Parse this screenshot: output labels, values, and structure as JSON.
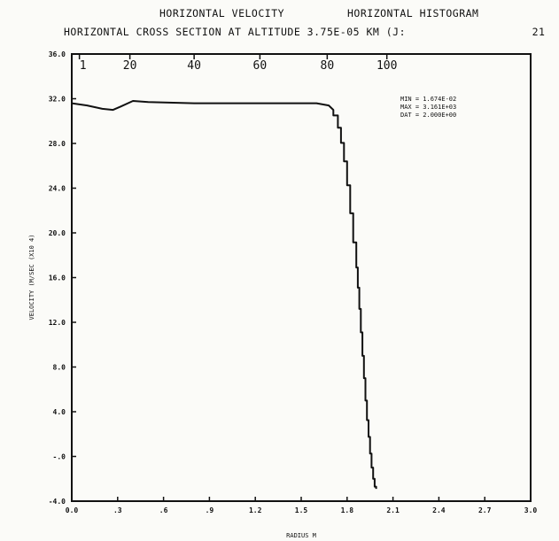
{
  "header": {
    "line1_left": "HORIZONTAL VELOCITY",
    "line1_right": "HORIZONTAL HISTOGRAM",
    "line2": "HORIZONTAL CROSS SECTION AT ALTITUDE 3.75E-05 KM  (J:",
    "frame_number": "21"
  },
  "stats": {
    "min": "MIN = 1.674E-02",
    "max": "MAX = 3.161E+03",
    "delta": "DAT = 2.000E+00"
  },
  "chart_data": {
    "type": "line",
    "title": "HORIZONTAL CROSS SECTION AT ALTITUDE 3.75E-05 KM",
    "xlabel": "RADIUS M",
    "ylabel": "VELOCITY (M/SEC (X10 4)",
    "xlim": [
      0.0,
      3.0
    ],
    "ylim": [
      -4.0,
      36.0
    ],
    "x_ticks": [
      "0.0",
      ".3",
      ".6",
      ".9",
      "1.2",
      "1.5",
      "1.8",
      "2.1",
      "2.4",
      "2.7",
      "3.0"
    ],
    "y_ticks": [
      "-4.0",
      "-.0",
      "4.0",
      "8.0",
      "12.0",
      "16.0",
      "20.0",
      "24.0",
      "28.0",
      "32.0",
      "36.0"
    ],
    "top_ticks": {
      "labels": [
        "1",
        "20",
        "40",
        "60",
        "80",
        "100"
      ],
      "positions": [
        0.05,
        0.38,
        0.8,
        1.23,
        1.67,
        2.06
      ]
    },
    "grid": false,
    "series": [
      {
        "x": [
          0.0,
          0.1,
          0.2,
          0.27,
          0.32,
          0.4,
          0.5,
          0.8,
          1.1,
          1.4,
          1.6,
          1.68,
          1.71,
          1.74,
          1.76,
          1.78,
          1.8,
          1.82,
          1.84,
          1.86,
          1.87,
          1.88,
          1.89,
          1.9,
          1.91,
          1.92,
          1.93,
          1.94,
          1.95,
          1.96,
          1.97,
          1.98,
          1.99
        ],
        "y": [
          31.6,
          31.4,
          31.1,
          31.0,
          31.3,
          31.8,
          31.7,
          31.6,
          31.6,
          31.6,
          31.6,
          31.4,
          31.0,
          30.0,
          28.8,
          27.3,
          25.5,
          23.0,
          20.5,
          17.8,
          16.0,
          14.2,
          12.2,
          10.0,
          8.0,
          6.0,
          4.0,
          2.5,
          1.0,
          -0.5,
          -1.5,
          -2.5,
          -2.9
        ]
      }
    ]
  }
}
